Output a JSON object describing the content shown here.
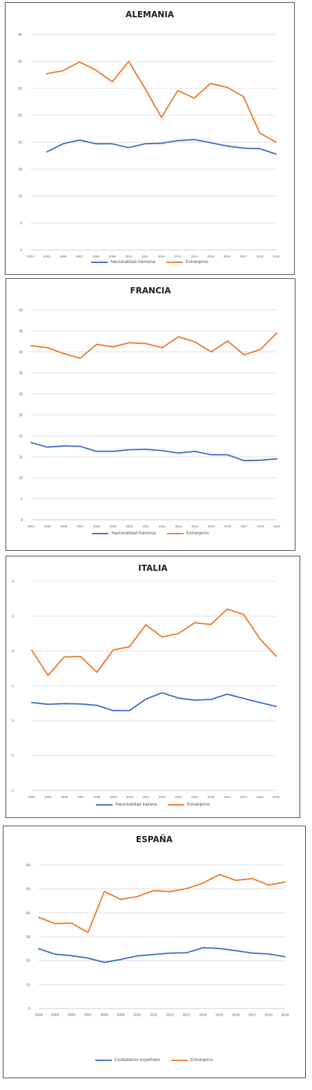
{
  "chart_data": [
    {
      "type": "line",
      "title": "ALEMANIA",
      "x": [
        "2004",
        "2005",
        "2006",
        "2007",
        "2008",
        "2009",
        "2010",
        "2011",
        "2012",
        "2013",
        "2014",
        "2015",
        "2016",
        "2017",
        "2018",
        "2019"
      ],
      "ylim": [
        0,
        40
      ],
      "yticks": [
        "0",
        "5",
        "10",
        "15",
        "20",
        "25",
        "30",
        "35",
        "40"
      ],
      "grid": true,
      "legend": "bottom",
      "series": [
        {
          "name": "Nacionalidad Alemana",
          "color": "#4472c4",
          "values": [
            null,
            18.2,
            19.7,
            20.4,
            19.7,
            19.7,
            19.0,
            19.7,
            19.8,
            20.3,
            20.5,
            19.9,
            19.3,
            18.9,
            18.8,
            17.8
          ]
        },
        {
          "name": "Extranjeros",
          "color": "#ed7d31",
          "values": [
            null,
            32.7,
            33.3,
            34.9,
            33.4,
            31.2,
            35.0,
            30.0,
            24.6,
            29.6,
            28.2,
            30.9,
            30.2,
            28.5,
            21.7,
            20.0
          ]
        }
      ]
    },
    {
      "type": "line",
      "title": "FRANCIA",
      "x": [
        "2004",
        "2005",
        "2006",
        "2007",
        "2008",
        "2009",
        "2010",
        "2011",
        "2012",
        "2013",
        "2014",
        "2015",
        "2016",
        "2017",
        "2018",
        "2019"
      ],
      "ylim": [
        0,
        50
      ],
      "yticks": [
        "0",
        "5",
        "10",
        "15",
        "20",
        "25",
        "30",
        "35",
        "40",
        "45",
        "50"
      ],
      "grid": true,
      "legend": "bottom",
      "series": [
        {
          "name": "Nacionalidad francesa",
          "color": "#4472c4",
          "values": [
            18.4,
            17.3,
            17.6,
            17.5,
            16.3,
            16.3,
            16.7,
            16.8,
            16.5,
            15.9,
            16.3,
            15.5,
            15.5,
            14.1,
            14.2,
            14.5
          ]
        },
        {
          "name": "Extranjeros",
          "color": "#ed7d31",
          "values": [
            41.5,
            41.0,
            39.6,
            38.5,
            41.8,
            41.2,
            42.2,
            42.0,
            41.0,
            43.6,
            42.4,
            40.0,
            42.6,
            39.3,
            40.6,
            44.5
          ]
        }
      ]
    },
    {
      "type": "line",
      "title": "ITALIA",
      "x": [
        "2004",
        "2005",
        "2006",
        "2007",
        "2008",
        "2009",
        "2010",
        "2011",
        "2012",
        "2013",
        "2014",
        "2015",
        "2016",
        "2017",
        "2018",
        "2019"
      ],
      "ylim": [
        0,
        60
      ],
      "yticks": [
        "0",
        "10",
        "20",
        "30",
        "40",
        "50",
        "60"
      ],
      "grid": true,
      "legend": "bottom",
      "series": [
        {
          "name": "Nacionalidad italiana",
          "color": "#4472c4",
          "values": [
            25.2,
            24.7,
            24.9,
            24.8,
            24.4,
            22.9,
            22.9,
            26.2,
            28.0,
            26.5,
            25.9,
            26.1,
            27.6,
            26.4,
            25.2,
            24.1
          ]
        },
        {
          "name": "Extranjeros",
          "color": "#ed7d31",
          "values": [
            40.2,
            33.0,
            38.3,
            38.4,
            33.9,
            40.3,
            41.2,
            47.5,
            44.0,
            45.0,
            48.1,
            47.6,
            52.0,
            50.5,
            43.5,
            38.5
          ]
        }
      ]
    },
    {
      "type": "line",
      "title": "ESPAÑA",
      "x": [
        "2004",
        "2005",
        "2006",
        "2007",
        "2008",
        "2009",
        "2010",
        "2011",
        "2012",
        "2013",
        "2014",
        "2015",
        "2016",
        "2017",
        "2018",
        "2019"
      ],
      "ylim": [
        0,
        60
      ],
      "yticks": [
        "0",
        "10",
        "20",
        "30",
        "40",
        "50",
        "60"
      ],
      "grid": true,
      "legend": "bottom",
      "series": [
        {
          "name": "Ciudadanos españoles",
          "color": "#4472c4",
          "values": [
            25.0,
            22.7,
            22.1,
            21.1,
            19.3,
            20.5,
            22.0,
            22.6,
            23.2,
            23.3,
            25.4,
            25.1,
            24.2,
            23.2,
            22.8,
            21.7
          ]
        },
        {
          "name": "Extranjeros",
          "color": "#ed7d31",
          "values": [
            38.1,
            35.5,
            35.7,
            31.8,
            48.9,
            45.6,
            46.8,
            49.3,
            48.9,
            50.1,
            52.4,
            56.0,
            53.6,
            54.3,
            51.6,
            52.9
          ]
        }
      ]
    }
  ]
}
